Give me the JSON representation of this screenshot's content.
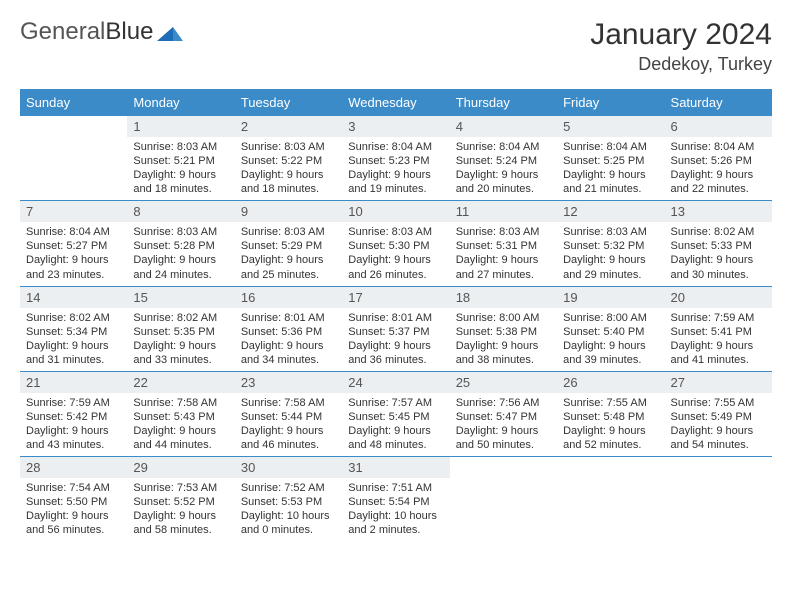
{
  "brand": {
    "name1": "General",
    "name2": "Blue"
  },
  "title": "January 2024",
  "location": "Dedekoy, Turkey",
  "weekdays": [
    "Sunday",
    "Monday",
    "Tuesday",
    "Wednesday",
    "Thursday",
    "Friday",
    "Saturday"
  ],
  "colors": {
    "header_bg": "#3b8bc9",
    "daynum_bg": "#eceff1",
    "rule": "#3b8bc9"
  },
  "weeks": [
    [
      {
        "n": "",
        "sunrise": "",
        "sunset": "",
        "daylight": ""
      },
      {
        "n": "1",
        "sunrise": "Sunrise: 8:03 AM",
        "sunset": "Sunset: 5:21 PM",
        "daylight": "Daylight: 9 hours and 18 minutes."
      },
      {
        "n": "2",
        "sunrise": "Sunrise: 8:03 AM",
        "sunset": "Sunset: 5:22 PM",
        "daylight": "Daylight: 9 hours and 18 minutes."
      },
      {
        "n": "3",
        "sunrise": "Sunrise: 8:04 AM",
        "sunset": "Sunset: 5:23 PM",
        "daylight": "Daylight: 9 hours and 19 minutes."
      },
      {
        "n": "4",
        "sunrise": "Sunrise: 8:04 AM",
        "sunset": "Sunset: 5:24 PM",
        "daylight": "Daylight: 9 hours and 20 minutes."
      },
      {
        "n": "5",
        "sunrise": "Sunrise: 8:04 AM",
        "sunset": "Sunset: 5:25 PM",
        "daylight": "Daylight: 9 hours and 21 minutes."
      },
      {
        "n": "6",
        "sunrise": "Sunrise: 8:04 AM",
        "sunset": "Sunset: 5:26 PM",
        "daylight": "Daylight: 9 hours and 22 minutes."
      }
    ],
    [
      {
        "n": "7",
        "sunrise": "Sunrise: 8:04 AM",
        "sunset": "Sunset: 5:27 PM",
        "daylight": "Daylight: 9 hours and 23 minutes."
      },
      {
        "n": "8",
        "sunrise": "Sunrise: 8:03 AM",
        "sunset": "Sunset: 5:28 PM",
        "daylight": "Daylight: 9 hours and 24 minutes."
      },
      {
        "n": "9",
        "sunrise": "Sunrise: 8:03 AM",
        "sunset": "Sunset: 5:29 PM",
        "daylight": "Daylight: 9 hours and 25 minutes."
      },
      {
        "n": "10",
        "sunrise": "Sunrise: 8:03 AM",
        "sunset": "Sunset: 5:30 PM",
        "daylight": "Daylight: 9 hours and 26 minutes."
      },
      {
        "n": "11",
        "sunrise": "Sunrise: 8:03 AM",
        "sunset": "Sunset: 5:31 PM",
        "daylight": "Daylight: 9 hours and 27 minutes."
      },
      {
        "n": "12",
        "sunrise": "Sunrise: 8:03 AM",
        "sunset": "Sunset: 5:32 PM",
        "daylight": "Daylight: 9 hours and 29 minutes."
      },
      {
        "n": "13",
        "sunrise": "Sunrise: 8:02 AM",
        "sunset": "Sunset: 5:33 PM",
        "daylight": "Daylight: 9 hours and 30 minutes."
      }
    ],
    [
      {
        "n": "14",
        "sunrise": "Sunrise: 8:02 AM",
        "sunset": "Sunset: 5:34 PM",
        "daylight": "Daylight: 9 hours and 31 minutes."
      },
      {
        "n": "15",
        "sunrise": "Sunrise: 8:02 AM",
        "sunset": "Sunset: 5:35 PM",
        "daylight": "Daylight: 9 hours and 33 minutes."
      },
      {
        "n": "16",
        "sunrise": "Sunrise: 8:01 AM",
        "sunset": "Sunset: 5:36 PM",
        "daylight": "Daylight: 9 hours and 34 minutes."
      },
      {
        "n": "17",
        "sunrise": "Sunrise: 8:01 AM",
        "sunset": "Sunset: 5:37 PM",
        "daylight": "Daylight: 9 hours and 36 minutes."
      },
      {
        "n": "18",
        "sunrise": "Sunrise: 8:00 AM",
        "sunset": "Sunset: 5:38 PM",
        "daylight": "Daylight: 9 hours and 38 minutes."
      },
      {
        "n": "19",
        "sunrise": "Sunrise: 8:00 AM",
        "sunset": "Sunset: 5:40 PM",
        "daylight": "Daylight: 9 hours and 39 minutes."
      },
      {
        "n": "20",
        "sunrise": "Sunrise: 7:59 AM",
        "sunset": "Sunset: 5:41 PM",
        "daylight": "Daylight: 9 hours and 41 minutes."
      }
    ],
    [
      {
        "n": "21",
        "sunrise": "Sunrise: 7:59 AM",
        "sunset": "Sunset: 5:42 PM",
        "daylight": "Daylight: 9 hours and 43 minutes."
      },
      {
        "n": "22",
        "sunrise": "Sunrise: 7:58 AM",
        "sunset": "Sunset: 5:43 PM",
        "daylight": "Daylight: 9 hours and 44 minutes."
      },
      {
        "n": "23",
        "sunrise": "Sunrise: 7:58 AM",
        "sunset": "Sunset: 5:44 PM",
        "daylight": "Daylight: 9 hours and 46 minutes."
      },
      {
        "n": "24",
        "sunrise": "Sunrise: 7:57 AM",
        "sunset": "Sunset: 5:45 PM",
        "daylight": "Daylight: 9 hours and 48 minutes."
      },
      {
        "n": "25",
        "sunrise": "Sunrise: 7:56 AM",
        "sunset": "Sunset: 5:47 PM",
        "daylight": "Daylight: 9 hours and 50 minutes."
      },
      {
        "n": "26",
        "sunrise": "Sunrise: 7:55 AM",
        "sunset": "Sunset: 5:48 PM",
        "daylight": "Daylight: 9 hours and 52 minutes."
      },
      {
        "n": "27",
        "sunrise": "Sunrise: 7:55 AM",
        "sunset": "Sunset: 5:49 PM",
        "daylight": "Daylight: 9 hours and 54 minutes."
      }
    ],
    [
      {
        "n": "28",
        "sunrise": "Sunrise: 7:54 AM",
        "sunset": "Sunset: 5:50 PM",
        "daylight": "Daylight: 9 hours and 56 minutes."
      },
      {
        "n": "29",
        "sunrise": "Sunrise: 7:53 AM",
        "sunset": "Sunset: 5:52 PM",
        "daylight": "Daylight: 9 hours and 58 minutes."
      },
      {
        "n": "30",
        "sunrise": "Sunrise: 7:52 AM",
        "sunset": "Sunset: 5:53 PM",
        "daylight": "Daylight: 10 hours and 0 minutes."
      },
      {
        "n": "31",
        "sunrise": "Sunrise: 7:51 AM",
        "sunset": "Sunset: 5:54 PM",
        "daylight": "Daylight: 10 hours and 2 minutes."
      },
      {
        "n": "",
        "sunrise": "",
        "sunset": "",
        "daylight": ""
      },
      {
        "n": "",
        "sunrise": "",
        "sunset": "",
        "daylight": ""
      },
      {
        "n": "",
        "sunrise": "",
        "sunset": "",
        "daylight": ""
      }
    ]
  ]
}
